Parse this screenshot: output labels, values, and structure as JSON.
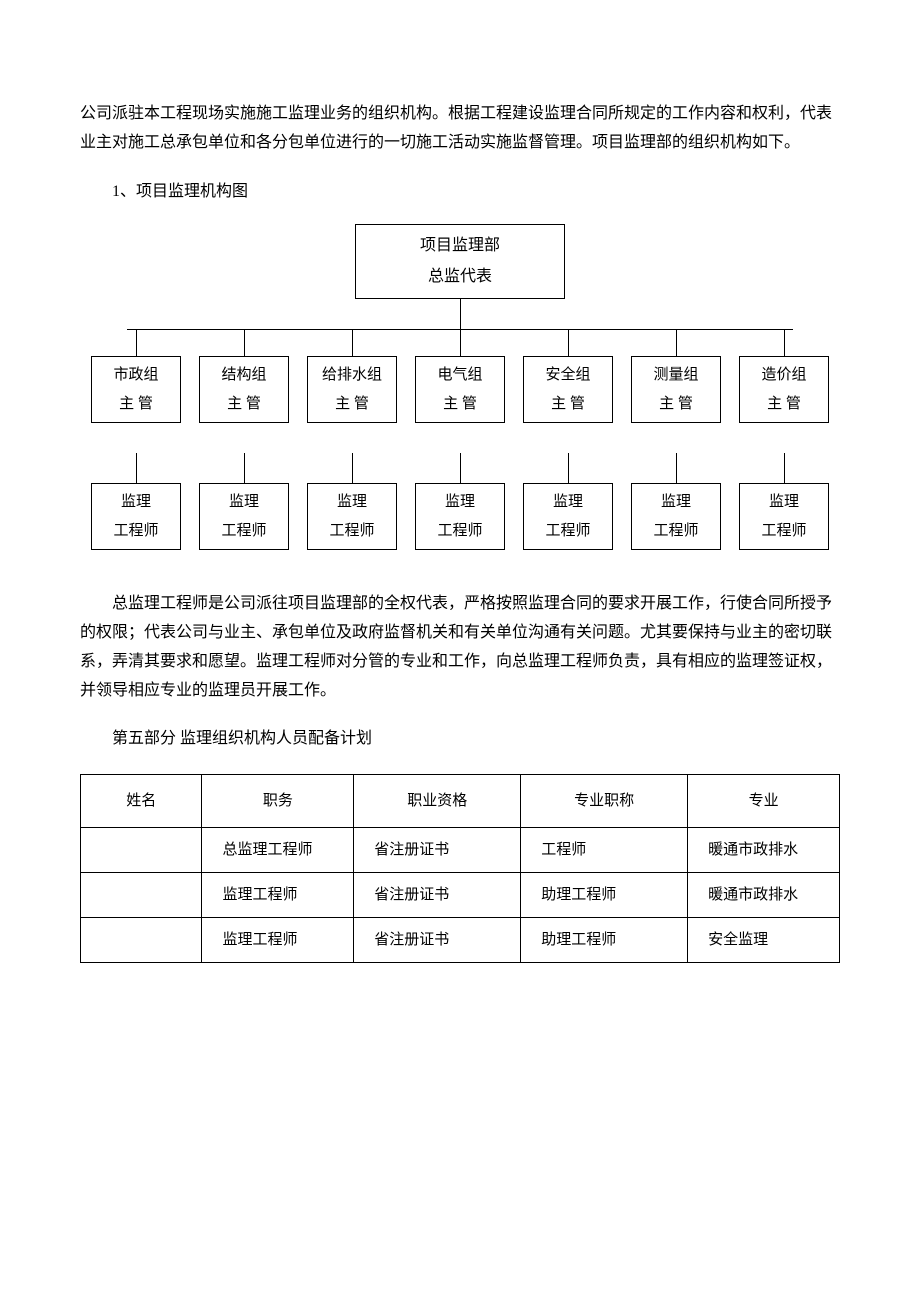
{
  "intro_paragraph": "公司派驻本工程现场实施施工监理业务的组织机构。根据工程建设监理合同所规定的工作内容和权利，代表业主对施工总承包单位和各分包单位进行的一切施工活动实施监督管理。项目监理部的组织机构如下。",
  "heading_1": "1、项目监理机构图",
  "org_chart": {
    "root": {
      "line1": "项目监理部",
      "line2": "总监代表"
    },
    "departments": [
      {
        "name": "市政组",
        "head": "主 管"
      },
      {
        "name": "结构组",
        "head": "主 管"
      },
      {
        "name": "给排水组",
        "head": "主 管"
      },
      {
        "name": "电气组",
        "head": "主 管"
      },
      {
        "name": "安全组",
        "head": "主 管"
      },
      {
        "name": "测量组",
        "head": "主 管"
      },
      {
        "name": "造价组",
        "head": "主 管"
      }
    ],
    "engineer": {
      "line1": "监理",
      "line2": "工程师"
    }
  },
  "para_after_chart": "总监理工程师是公司派往项目监理部的全权代表，严格按照监理合同的要求开展工作，行使合同所授予的权限；代表公司与业主、承包单位及政府监督机关和有关单位沟通有关问题。尤其要保持与业主的密切联系，弄清其要求和愿望。监理工程师对分管的专业和工作，向总监理工程师负责，具有相应的监理签证权，并领导相应专业的监理员开展工作。",
  "heading_part5": "第五部分 监理组织机构人员配备计划",
  "personnel_table": {
    "columns": [
      "姓名",
      "职务",
      "职业资格",
      "专业职称",
      "专业"
    ],
    "rows": [
      [
        "",
        "总监理工程师",
        "省注册证书",
        "工程师",
        "暖通市政排水"
      ],
      [
        "",
        "监理工程师",
        "省注册证书",
        "助理工程师",
        "暖通市政排水"
      ],
      [
        "",
        "监理工程师",
        "省注册证书",
        "助理工程师",
        "安全监理"
      ]
    ]
  },
  "colors": {
    "text": "#000000",
    "border": "#000000",
    "background": "#ffffff",
    "watermark": "#e8e8e8"
  }
}
